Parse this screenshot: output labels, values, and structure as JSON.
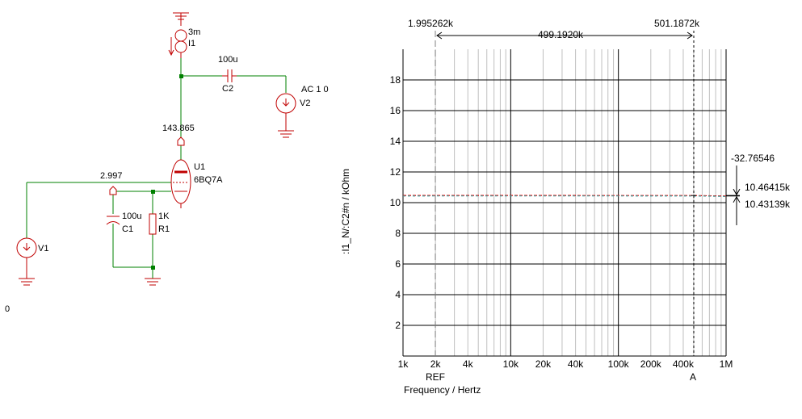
{
  "colors": {
    "wire": "#008000",
    "component": "#c00000",
    "node": "#008000",
    "grid_major": "#000000",
    "grid_minor": "#bfbfbf",
    "trace_red": "#e00000",
    "trace_teal": "#40a0a0",
    "background": "#ffffff"
  },
  "schematic": {
    "ground_label": "0",
    "I1": {
      "value": "3m",
      "ref": "I1"
    },
    "C2": {
      "value": "100u",
      "ref": "C2"
    },
    "V2": {
      "value": "AC 1 0",
      "ref": "V2"
    },
    "anode_voltage": "143.865",
    "U1": {
      "ref": "U1",
      "model": "6BQ7A"
    },
    "cathode_voltage": "2.997",
    "C1": {
      "value": "100u",
      "ref": "C1"
    },
    "R1": {
      "value": "1K",
      "ref": "R1"
    },
    "V1": {
      "ref": "V1"
    }
  },
  "cursors": {
    "ref_value": "1.995262k",
    "a_value": "501.1872k",
    "delta_value": "499.1920k",
    "ref_label": "REF",
    "a_label": "A",
    "y_delta": "-32.76546",
    "y_upper": "10.46415k",
    "y_lower": "10.43139k"
  },
  "chart_data": {
    "type": "line",
    "xscale": "log",
    "xlim": [
      1000,
      1000000
    ],
    "ylim": [
      0,
      20
    ],
    "xlabel": "Frequency / Hertz",
    "ylabel": ":I1_N/:C2#n / kOhm",
    "x_ticks": [
      {
        "v": 1000,
        "label": "1k"
      },
      {
        "v": 2000,
        "label": "2k"
      },
      {
        "v": 4000,
        "label": "4k"
      },
      {
        "v": 10000,
        "label": "10k"
      },
      {
        "v": 20000,
        "label": "20k"
      },
      {
        "v": 40000,
        "label": "40k"
      },
      {
        "v": 100000,
        "label": "100k"
      },
      {
        "v": 200000,
        "label": "200k"
      },
      {
        "v": 400000,
        "label": "400k"
      },
      {
        "v": 1000000,
        "label": "1M"
      }
    ],
    "y_ticks": [
      {
        "v": 2,
        "label": "2"
      },
      {
        "v": 4,
        "label": "4"
      },
      {
        "v": 6,
        "label": "6"
      },
      {
        "v": 8,
        "label": "8"
      },
      {
        "v": 10,
        "label": "10"
      },
      {
        "v": 12,
        "label": "12"
      },
      {
        "v": 14,
        "label": "14"
      },
      {
        "v": 16,
        "label": "16"
      },
      {
        "v": 18,
        "label": "18"
      }
    ],
    "grid": true,
    "cursor_ref_x": 1995.262,
    "cursor_a_x": 501187.2,
    "series": [
      {
        "color": "#e00000",
        "x": [
          1000,
          2000,
          10000,
          100000,
          500000,
          700000,
          1000000
        ],
        "y": [
          10.47,
          10.467,
          10.466,
          10.465,
          10.464,
          10.45,
          10.43
        ]
      },
      {
        "color": "#40a0a0",
        "x": [
          1000,
          2000,
          10000,
          100000,
          500000,
          700000,
          1000000
        ],
        "y": [
          10.43,
          10.435,
          10.438,
          10.437,
          10.431,
          10.42,
          10.4
        ]
      }
    ]
  }
}
